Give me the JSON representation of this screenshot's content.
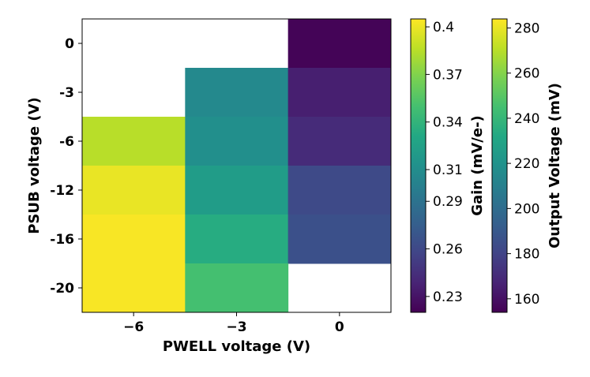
{
  "chart_data": {
    "type": "heatmap",
    "xlabel": "PWELL voltage (V)",
    "ylabel": "PSUB voltage (V)",
    "x_categories": [
      "−6",
      "−3",
      "0"
    ],
    "y_categories": [
      "0",
      "-3",
      "-6",
      "-12",
      "-16",
      "-20"
    ],
    "cells": [
      {
        "x": "−6",
        "y": "0",
        "value": null
      },
      {
        "x": "−3",
        "y": "0",
        "value": null
      },
      {
        "x": "0",
        "y": "0",
        "value": 155
      },
      {
        "x": "−6",
        "y": "-3",
        "value": null
      },
      {
        "x": "−3",
        "y": "-3",
        "value": 215
      },
      {
        "x": "0",
        "y": "-3",
        "value": 165
      },
      {
        "x": "−6",
        "y": "-6",
        "value": 270
      },
      {
        "x": "−3",
        "y": "-6",
        "value": 218
      },
      {
        "x": "0",
        "y": "-6",
        "value": 170
      },
      {
        "x": "−6",
        "y": "-12",
        "value": 280
      },
      {
        "x": "−3",
        "y": "-12",
        "value": 225
      },
      {
        "x": "0",
        "y": "-12",
        "value": 183
      },
      {
        "x": "−6",
        "y": "-16",
        "value": 283
      },
      {
        "x": "−3",
        "y": "-16",
        "value": 234
      },
      {
        "x": "0",
        "y": "-16",
        "value": 186
      },
      {
        "x": "−6",
        "y": "-20",
        "value": 283
      },
      {
        "x": "−3",
        "y": "-20",
        "value": 245
      },
      {
        "x": "0",
        "y": "-20",
        "value": null
      }
    ],
    "colormap": "viridis",
    "colorbars": [
      {
        "label": "Gain (mV/e-)",
        "range": [
          0.22,
          0.405
        ],
        "ticks": [
          0.23,
          0.26,
          0.29,
          0.31,
          0.34,
          0.37,
          0.4
        ],
        "tick_labels": [
          "0.23",
          "0.26",
          "0.29",
          "0.31",
          "0.34",
          "0.37",
          "0.4"
        ]
      },
      {
        "label": "Output Voltage (mV)",
        "range": [
          154,
          284
        ],
        "ticks": [
          160,
          180,
          200,
          220,
          240,
          260,
          280
        ],
        "tick_labels": [
          "160",
          "180",
          "200",
          "220",
          "240",
          "260",
          "280"
        ]
      }
    ],
    "grid": false
  }
}
